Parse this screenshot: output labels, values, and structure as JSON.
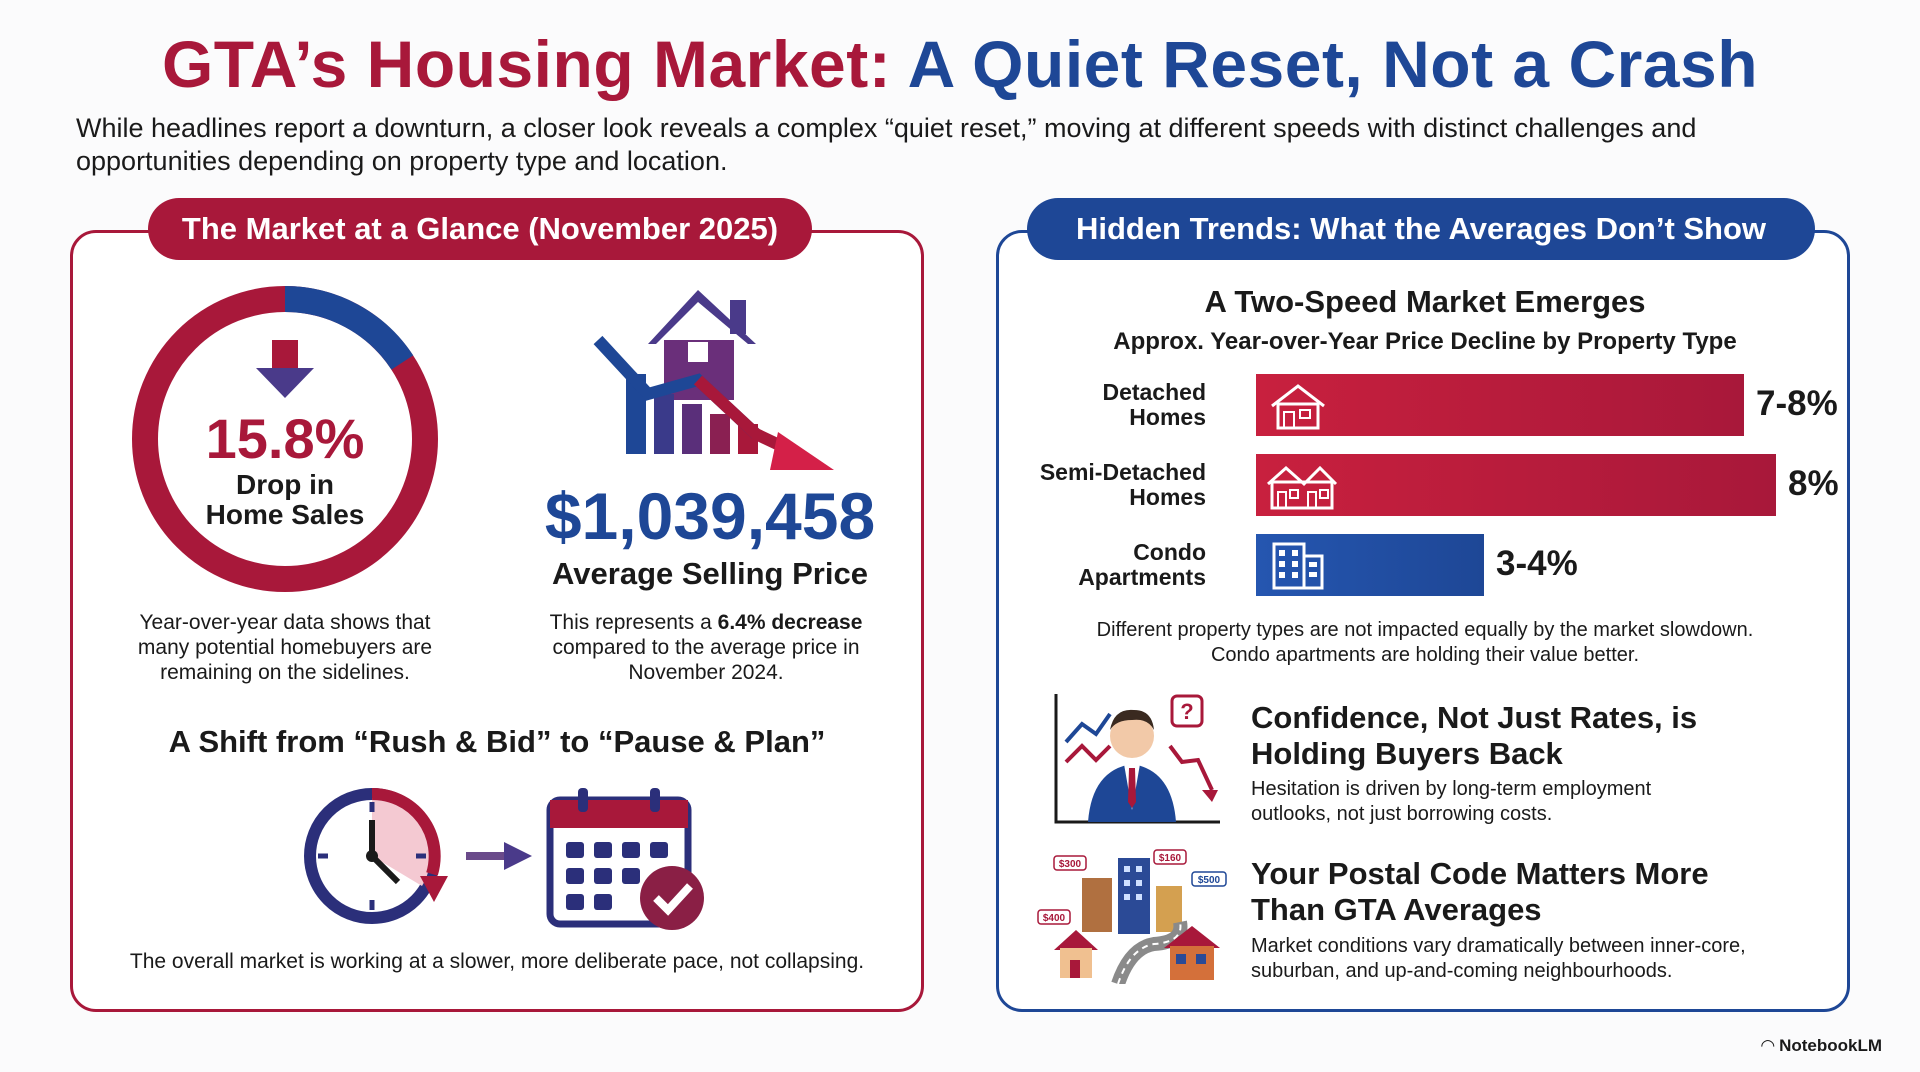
{
  "header": {
    "title_red": "GTA’s Housing Market:",
    "title_blue": "A Quiet Reset, Not a Crash",
    "subtitle": "While headlines report a downturn, a closer look reveals a complex “quiet reset,” moving at different speeds with distinct challenges and opportunities depending on property type and location."
  },
  "left_panel": {
    "pill": "The Market at a Glance (November 2025)",
    "sales_drop": {
      "value": "15.8%",
      "label_line1": "Drop in",
      "label_line2": "Home Sales",
      "fraction": 0.158,
      "caption": "Year-over-year data shows that many potential homebuyers are remaining on the sidelines."
    },
    "price": {
      "value": "$1,039,458",
      "label": "Average Selling Price",
      "caption_pre": "This represents a ",
      "caption_bold": "6.4% decrease",
      "caption_post": " compared to the average price in November 2024."
    },
    "shift": {
      "heading": "A Shift from “Rush & Bid” to “Pause & Plan”",
      "caption": "The overall market is working at a slower, more deliberate pace, not collapsing."
    },
    "icons": [
      "house-decline-icon",
      "arrow-down-icon",
      "clock-icon",
      "arrow-right-icon",
      "calendar-check-icon"
    ]
  },
  "right_panel": {
    "pill": "Hidden Trends: What the Averages Don’t Show",
    "chart_heading": "A Two-Speed Market Emerges",
    "chart_subheading": "Approx. Year-over-Year Price Decline by Property Type",
    "chart_caption_line1": "Different property types are not impacted equally by the market slowdown.",
    "chart_caption_line2": "Condo apartments are holding their value better.",
    "trend1": {
      "heading_line1": "Confidence, Not Just Rates, is",
      "heading_line2": "Holding Buyers Back",
      "text_line1": "Hesitation is driven by long-term employment",
      "text_line2": "outlooks, not just borrowing costs."
    },
    "trend2": {
      "heading_line1": "Your Postal Code Matters More",
      "heading_line2": "Than GTA Averages",
      "text_line1": "Market conditions vary dramatically between inner-core,",
      "text_line2": "suburban, and up-and-coming neighbourhoods.",
      "price_tags": [
        "$300",
        "$160",
        "$500",
        "$400"
      ]
    }
  },
  "chart_data": {
    "type": "bar",
    "orientation": "horizontal",
    "title": "A Two-Speed Market Emerges",
    "subtitle": "Approx. Year-over-Year Price Decline by Property Type",
    "categories": [
      {
        "line1": "Detached",
        "line2": "Homes"
      },
      {
        "line1": "Semi-Detached",
        "line2": "Homes"
      },
      {
        "line1": "Condo",
        "line2": "Apartments"
      }
    ],
    "values": [
      7.5,
      8,
      3.5
    ],
    "value_labels": [
      "7-8%",
      "8%",
      "3-4%"
    ],
    "colors": [
      "#a8183a",
      "#a8183a",
      "#1e4796"
    ],
    "icons": [
      "house-icon",
      "semi-detached-icon",
      "condo-building-icon"
    ],
    "xlim": [
      0,
      8
    ]
  },
  "footer": {
    "brand": "NotebookLM"
  },
  "colors": {
    "red": "#a8183a",
    "blue": "#1e4796"
  }
}
